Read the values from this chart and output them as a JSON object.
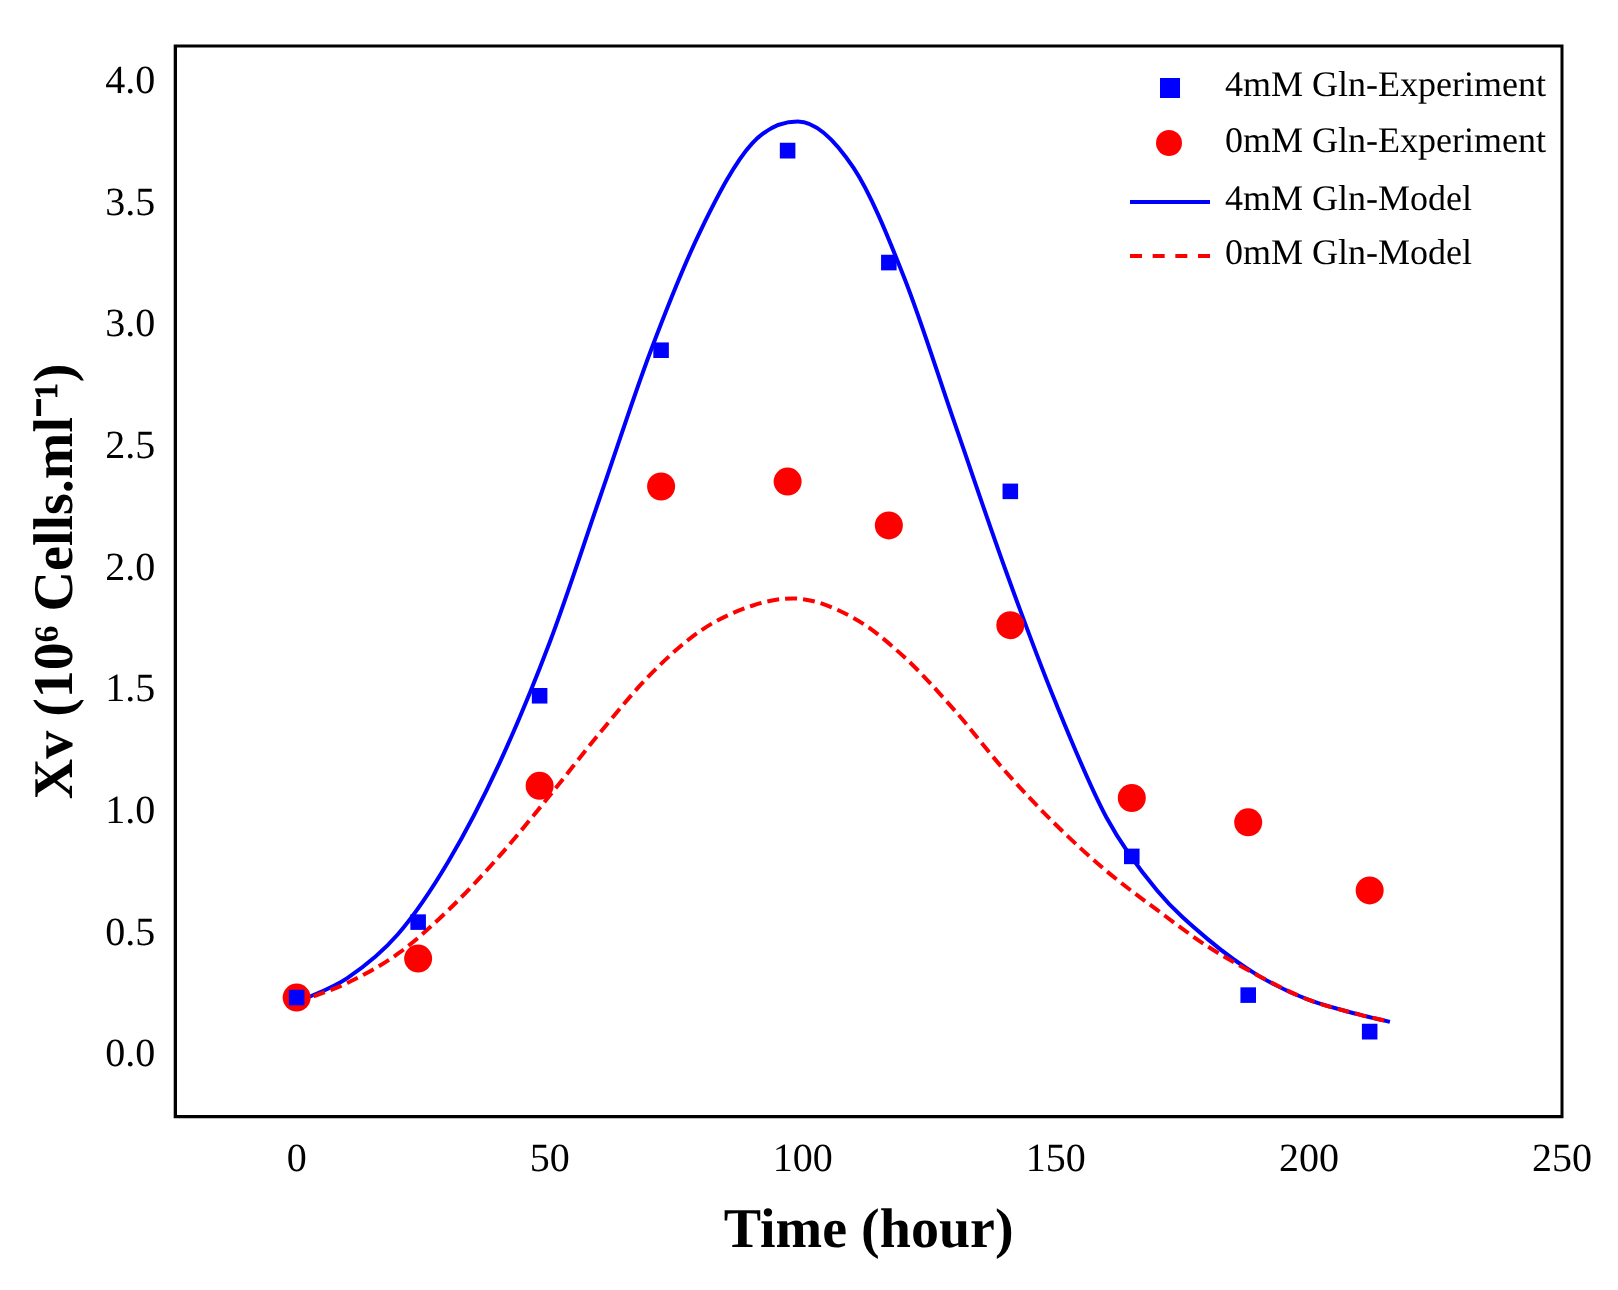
{
  "chart_data": {
    "type": "scatter",
    "xlabel": "Time (hour)",
    "ylabel": "Xv (10⁶ Cells.ml⁻¹)",
    "xlim": [
      -24,
      250
    ],
    "xticks": [
      0,
      50,
      100,
      150,
      200,
      250
    ],
    "ylim": [
      -0.25,
      4.15
    ],
    "yticks": [
      {
        "value": 0,
        "label": "0.0"
      },
      {
        "value": 0.5,
        "label": "0.5"
      },
      {
        "value": 1,
        "label": "1.0"
      },
      {
        "value": 1.5,
        "label": "1.5"
      },
      {
        "value": 2,
        "label": "2.0"
      },
      {
        "value": 2.5,
        "label": "2.5"
      },
      {
        "value": 3,
        "label": "3.0"
      },
      {
        "value": 3.5,
        "label": "3.5"
      },
      {
        "value": 4,
        "label": "4.0"
      }
    ],
    "grid": false,
    "legend": "top right",
    "series": [
      {
        "name": "4mM Gln-Experiment",
        "type": "scatter",
        "marker": "square",
        "color": "#0000ff",
        "x": [
          0,
          24,
          48,
          72,
          97,
          117,
          141,
          165,
          188,
          212
        ],
        "values": [
          0.24,
          0.55,
          1.48,
          2.9,
          3.72,
          3.26,
          2.32,
          0.82,
          0.25,
          0.1
        ]
      },
      {
        "name": "0mM Gln-Experiment",
        "type": "scatter",
        "marker": "circle",
        "color": "#ff0000",
        "x": [
          0,
          24,
          48,
          72,
          97,
          117,
          141,
          165,
          188,
          212
        ],
        "values": [
          0.24,
          0.4,
          1.11,
          2.34,
          2.36,
          2.18,
          1.77,
          1.06,
          0.96,
          0.68
        ]
      },
      {
        "name": "4mM Gln-Model",
        "type": "line",
        "marker": "none",
        "line_style": "solid",
        "color": "#0000ff",
        "x": [
          0,
          10,
          20,
          30,
          40,
          50,
          60,
          70,
          80,
          90,
          99,
          110,
          120,
          130,
          140,
          150,
          160,
          170,
          180,
          190,
          200,
          210,
          216
        ],
        "values": [
          0.22,
          0.32,
          0.5,
          0.8,
          1.2,
          1.7,
          2.3,
          2.9,
          3.4,
          3.75,
          3.84,
          3.65,
          3.2,
          2.6,
          2.0,
          1.45,
          0.98,
          0.68,
          0.48,
          0.33,
          0.23,
          0.17,
          0.14
        ]
      },
      {
        "name": "0mM Gln-Model",
        "type": "line",
        "marker": "none",
        "line_style": "dashed",
        "color": "#ff0000",
        "x": [
          0,
          10,
          20,
          30,
          40,
          50,
          60,
          70,
          80,
          90,
          98,
          110,
          120,
          130,
          140,
          150,
          160,
          170,
          180,
          190,
          200,
          210,
          216
        ],
        "values": [
          0.22,
          0.3,
          0.42,
          0.6,
          0.82,
          1.07,
          1.33,
          1.57,
          1.75,
          1.85,
          1.88,
          1.8,
          1.64,
          1.42,
          1.17,
          0.95,
          0.76,
          0.6,
          0.45,
          0.33,
          0.23,
          0.17,
          0.14
        ]
      }
    ]
  }
}
